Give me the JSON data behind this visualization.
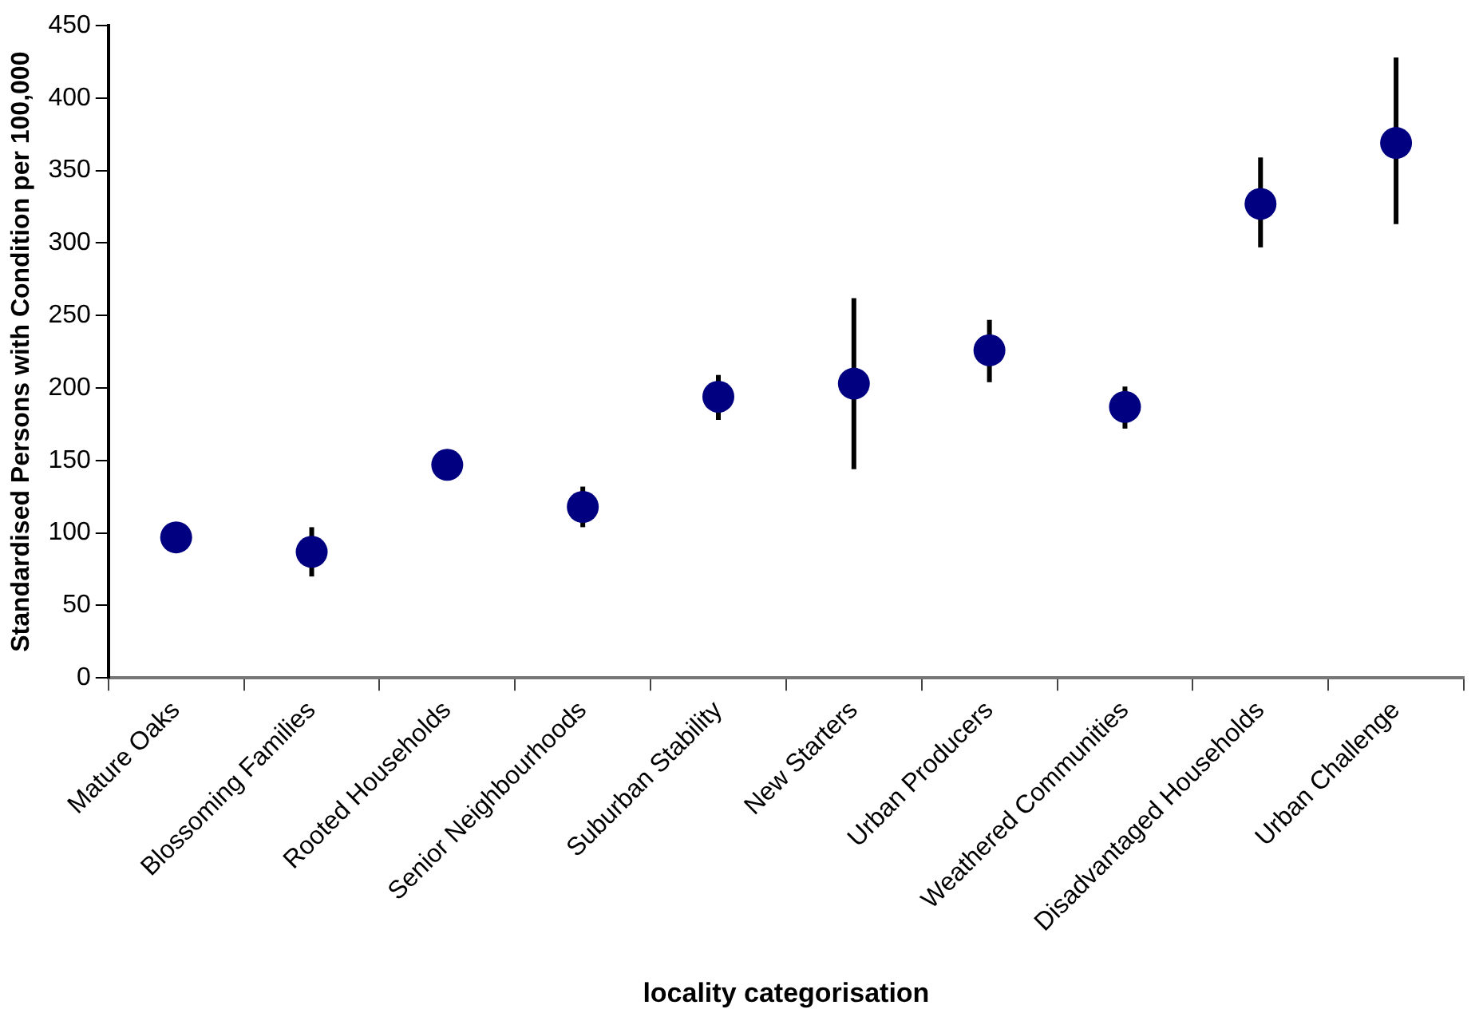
{
  "chart_data": {
    "type": "scatter",
    "xlabel": "locality categorisation",
    "ylabel": "Standardised Persons with Condition per 100,000",
    "categories": [
      "Mature Oaks",
      "Blossoming Families",
      "Rooted Households",
      "Senior Neighbourhoods",
      "Suburban Stability",
      "New Starters",
      "Urban Producers",
      "Weathered Communities",
      "Disadvantaged Households",
      "Urban Challenge"
    ],
    "values": [
      97,
      87,
      147,
      118,
      194,
      203,
      226,
      187,
      327,
      369
    ],
    "errors": [
      null,
      [
        70,
        104
      ],
      null,
      [
        104,
        132
      ],
      [
        178,
        209
      ],
      [
        144,
        262
      ],
      [
        204,
        247
      ],
      [
        172,
        201
      ],
      [
        297,
        359
      ],
      [
        313,
        428
      ]
    ],
    "color": "#000080",
    "marker": "circle",
    "ylim": [
      0,
      450
    ],
    "yticks": [
      0,
      50,
      100,
      150,
      200,
      250,
      300,
      350,
      400,
      450
    ],
    "grid": false,
    "legend": false
  }
}
